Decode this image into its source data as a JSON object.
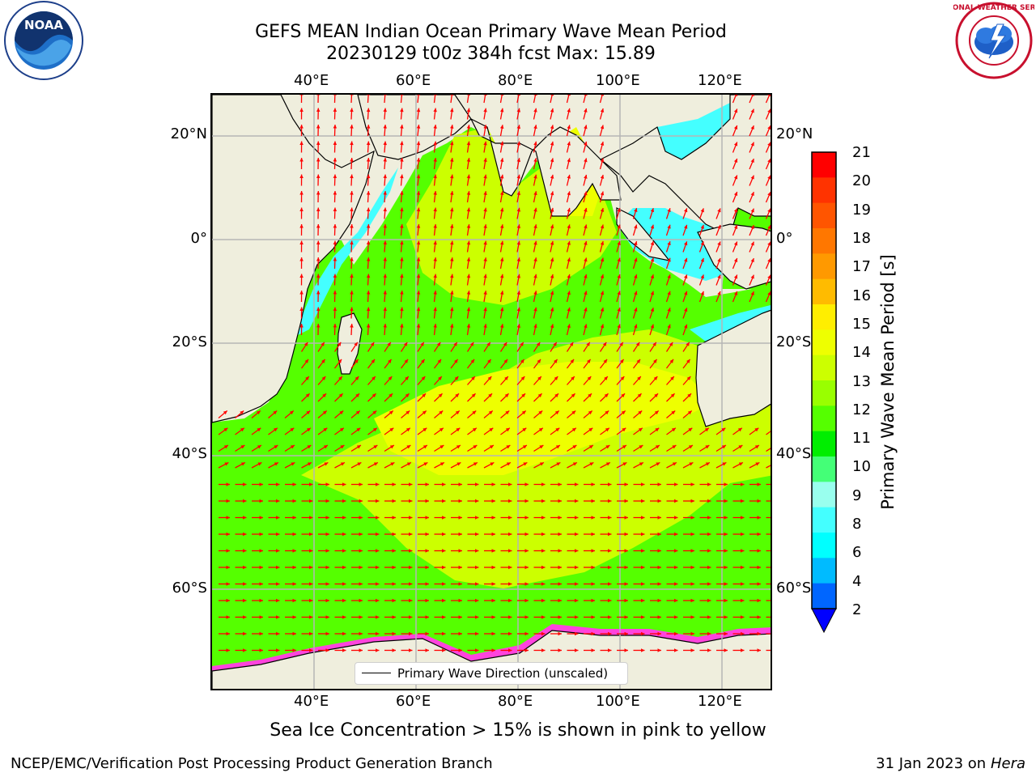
{
  "header": {
    "title_line1": "GEFS MEAN Indian Ocean Primary Wave Mean Period",
    "title_line2": "20230129 t00z 384h fcst   Max: 15.89"
  },
  "logos": {
    "noaa": {
      "icon": "noaa-logo",
      "text": "NOAA",
      "ring_text": "NATIONAL OCEANIC AND ATMOSPHERIC ADMINISTRATION • U.S. DEPARTMENT OF COMMERCE"
    },
    "nws": {
      "icon": "nws-logo",
      "ring_text": "NATIONAL WEATHER SERVICE"
    }
  },
  "map": {
    "projection": "Mercator",
    "lon_ticks_top": [
      "40°E",
      "60°E",
      "80°E",
      "100°E",
      "120°E"
    ],
    "lon_ticks_bottom": [
      "40°E",
      "60°E",
      "80°E",
      "100°E",
      "120°E"
    ],
    "lat_ticks_left": [
      "20°N",
      "0°",
      "20°S",
      "40°S",
      "60°S"
    ],
    "lat_ticks_right": [
      "20°N",
      "0°",
      "20°S",
      "40°S",
      "60°S"
    ],
    "grid": true,
    "land_color": "#efeedd",
    "arrow_color": "#ff0000",
    "legend": "Primary Wave Direction (unscaled)"
  },
  "colorbar": {
    "label": "Primary Wave Mean Period [s]",
    "ticks": [
      "21",
      "20",
      "19",
      "18",
      "17",
      "16",
      "15",
      "14",
      "13",
      "12",
      "11",
      "10",
      "9",
      "8",
      "6",
      "4",
      "2"
    ],
    "colors": [
      "#ff0000",
      "#ff3300",
      "#ff5500",
      "#ff7700",
      "#ff9900",
      "#ffbb00",
      "#ffee00",
      "#eeff00",
      "#ccff00",
      "#99ff00",
      "#55ff00",
      "#00ee00",
      "#44ff77",
      "#99ffee",
      "#44ffff",
      "#00ffff",
      "#00bbff",
      "#0066ff"
    ],
    "extend_color": "#0000ff"
  },
  "subtitle": "Sea Ice Concentration > 15% is shown in pink to yellow",
  "footer": {
    "left": "NCEP/EMC/Verification Post Processing Product Generation Branch",
    "right_prefix": "31 Jan 2023 on ",
    "right_host": "Hera"
  }
}
